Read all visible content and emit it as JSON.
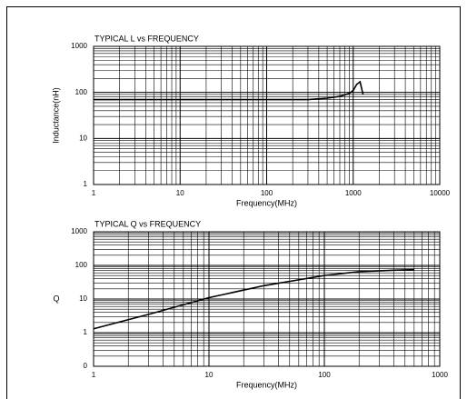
{
  "chart_data": [
    {
      "type": "line",
      "title": "TYPICAL L vs FREQUENCY",
      "xlabel": "Frequency(MHz)",
      "ylabel": "Inductance(nH)",
      "x": [
        1,
        10,
        100,
        300,
        500,
        700,
        900,
        1000,
        1100,
        1200,
        1300
      ],
      "values": [
        70,
        70,
        70,
        70,
        75,
        82,
        95,
        110,
        150,
        170,
        90
      ],
      "color": "#000000",
      "xlog": true,
      "ylog": true,
      "grid": true,
      "xlim": [
        1,
        10000
      ],
      "ylim": [
        1,
        1000
      ],
      "xticks": [
        1,
        10,
        100,
        1000,
        10000
      ],
      "yticks": [
        1,
        10,
        100,
        1000
      ]
    },
    {
      "type": "line",
      "title": "TYPICAL Q vs FREQUENCY",
      "xlabel": "Frequency(MHz)",
      "ylabel": "Q",
      "x": [
        1,
        3,
        10,
        30,
        100,
        200,
        400,
        600
      ],
      "values": [
        1.3,
        3.5,
        11,
        25,
        50,
        65,
        72,
        75
      ],
      "color": "#000000",
      "xlog": true,
      "ylog": true,
      "grid": true,
      "xlim": [
        1,
        1000
      ],
      "ylim": [
        0.1,
        1000
      ],
      "xticks": [
        1,
        10,
        100,
        1000
      ],
      "yticks": [
        {
          "value": 0.1,
          "label": "0"
        },
        1,
        10,
        100,
        1000
      ]
    }
  ]
}
